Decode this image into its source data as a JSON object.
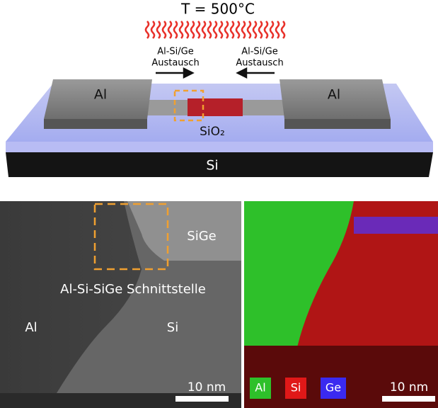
{
  "schematic": {
    "temperature": "T = 500°C",
    "left_arrow": {
      "line1": "Al-Si/Ge",
      "line2": "Austausch"
    },
    "right_arrow": {
      "line1": "Al-Si/Ge",
      "line2": "Austausch"
    },
    "left_pad": "Al",
    "right_pad": "Al",
    "oxide": "SiO₂",
    "substrate": "Si"
  },
  "sem_image": {
    "region_top_right": "SiGe",
    "interface": "Al-Si-SiGe Schnittstelle",
    "region_left": "Al",
    "region_right": "Si",
    "scale_bar": "10 nm"
  },
  "eds_map": {
    "legend": [
      "Al",
      "Si",
      "Ge"
    ],
    "scale_bar": "10 nm"
  }
}
